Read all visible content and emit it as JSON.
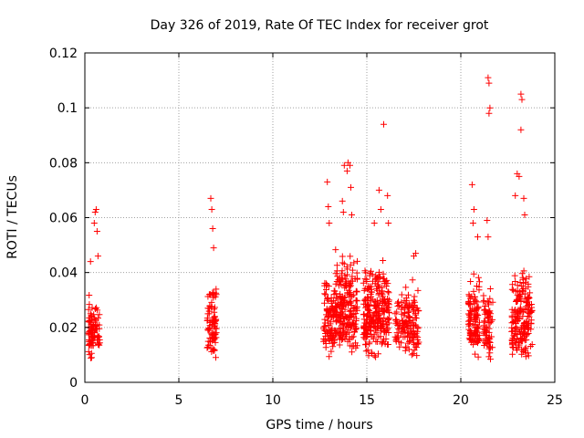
{
  "chart_data": {
    "type": "scatter",
    "title": "Day 326 of 2019, Rate Of TEC Index for receiver grot",
    "xlabel": "GPS time / hours",
    "ylabel": "ROTI / TECUs",
    "xlim": [
      0,
      25
    ],
    "ylim": [
      0,
      0.12
    ],
    "xticks": [
      0,
      5,
      10,
      15,
      20,
      25
    ],
    "xtick_labels": [
      "0",
      "5",
      "10",
      "15",
      "20",
      "25"
    ],
    "yticks": [
      0,
      0.02,
      0.04,
      0.06,
      0.08,
      0.1,
      0.12
    ],
    "ytick_labels": [
      "0",
      "0.02",
      "0.04",
      "0.06",
      "0.08",
      "0.1",
      "0.12"
    ],
    "grid": true,
    "marker": "+",
    "color": "#ff0000",
    "clusters": [
      {
        "x_range": [
          0.2,
          0.8
        ],
        "y_range": [
          0.006,
          0.035
        ],
        "count": 95
      },
      {
        "x_range": [
          6.5,
          7.0
        ],
        "y_range": [
          0.005,
          0.042
        ],
        "count": 85
      },
      {
        "x_range": [
          12.7,
          13.3
        ],
        "y_range": [
          0.006,
          0.045
        ],
        "count": 95
      },
      {
        "x_range": [
          13.3,
          14.5
        ],
        "y_range": [
          0.005,
          0.055
        ],
        "count": 220
      },
      {
        "x_range": [
          14.8,
          16.2
        ],
        "y_range": [
          0.005,
          0.05
        ],
        "count": 260
      },
      {
        "x_range": [
          16.5,
          17.8
        ],
        "y_range": [
          0.006,
          0.042
        ],
        "count": 150
      },
      {
        "x_range": [
          20.4,
          21.0
        ],
        "y_range": [
          0.006,
          0.045
        ],
        "count": 110
      },
      {
        "x_range": [
          21.2,
          21.7
        ],
        "y_range": [
          0.006,
          0.04
        ],
        "count": 70
      },
      {
        "x_range": [
          22.7,
          23.8
        ],
        "y_range": [
          0.004,
          0.048
        ],
        "count": 190
      }
    ],
    "outliers": [
      [
        0.3,
        0.044
      ],
      [
        0.5,
        0.058
      ],
      [
        0.55,
        0.062
      ],
      [
        0.6,
        0.063
      ],
      [
        0.65,
        0.055
      ],
      [
        0.7,
        0.046
      ],
      [
        6.7,
        0.067
      ],
      [
        6.75,
        0.063
      ],
      [
        6.8,
        0.056
      ],
      [
        6.85,
        0.049
      ],
      [
        12.9,
        0.073
      ],
      [
        12.95,
        0.064
      ],
      [
        13.0,
        0.058
      ],
      [
        13.7,
        0.066
      ],
      [
        13.8,
        0.079
      ],
      [
        13.95,
        0.077
      ],
      [
        14.0,
        0.08
      ],
      [
        14.1,
        0.079
      ],
      [
        14.15,
        0.071
      ],
      [
        14.2,
        0.061
      ],
      [
        13.75,
        0.062
      ],
      [
        15.65,
        0.07
      ],
      [
        15.75,
        0.063
      ],
      [
        15.9,
        0.094
      ],
      [
        16.1,
        0.068
      ],
      [
        16.15,
        0.058
      ],
      [
        15.4,
        0.058
      ],
      [
        17.6,
        0.047
      ],
      [
        17.5,
        0.046
      ],
      [
        20.6,
        0.072
      ],
      [
        20.7,
        0.063
      ],
      [
        20.9,
        0.053
      ],
      [
        20.65,
        0.058
      ],
      [
        21.45,
        0.111
      ],
      [
        21.5,
        0.109
      ],
      [
        21.55,
        0.1
      ],
      [
        21.5,
        0.098
      ],
      [
        21.4,
        0.059
      ],
      [
        21.45,
        0.053
      ],
      [
        23.0,
        0.076
      ],
      [
        23.1,
        0.075
      ],
      [
        23.2,
        0.105
      ],
      [
        23.25,
        0.103
      ],
      [
        23.2,
        0.092
      ],
      [
        23.35,
        0.067
      ],
      [
        23.4,
        0.061
      ],
      [
        22.9,
        0.068
      ]
    ]
  }
}
